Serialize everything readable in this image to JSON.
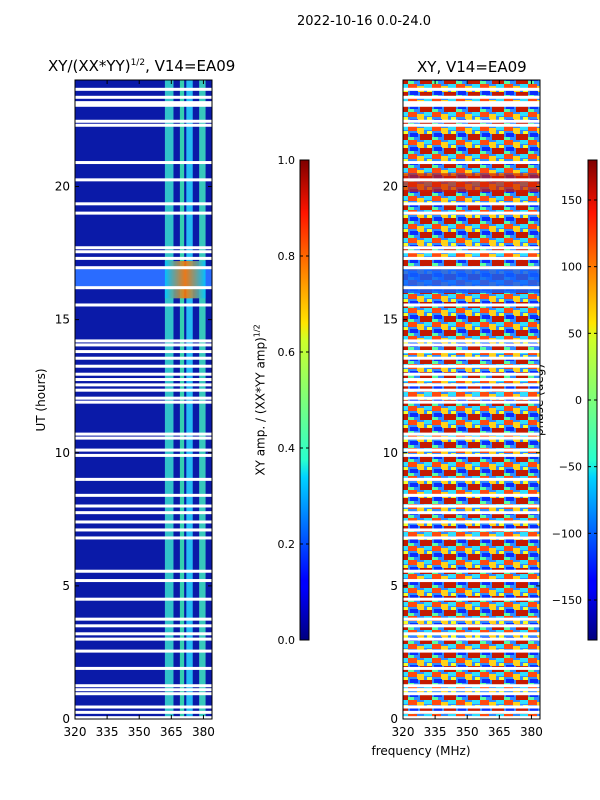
{
  "page_title": "2022-10-16 0.0-24.0",
  "xlabel": "frequency (MHz)",
  "chart_data": [
    {
      "type": "heatmap",
      "title_text": "XY/(XX*YY)",
      "title_exponent": "1/2",
      "title_suffix": ", V14=EA09",
      "ylabel": "UT (hours)",
      "xlim": [
        320,
        384
      ],
      "ylim": [
        0,
        24
      ],
      "xticks": [
        "320",
        "335",
        "350",
        "365",
        "380"
      ],
      "xtick_values": [
        320,
        335,
        350,
        365,
        380
      ],
      "yticks": [
        "0",
        "5",
        "10",
        "15",
        "20"
      ],
      "ytick_values": [
        0,
        5,
        10,
        15,
        20
      ],
      "colormap": "jet",
      "colorbar": {
        "label_text": "XY amp. / (XX*YY amp)",
        "label_exponent": "1/2",
        "range": [
          0.0,
          1.0
        ],
        "ticks": [
          "0.0",
          "0.2",
          "0.4",
          "0.6",
          "0.8",
          "1.0"
        ],
        "tick_values": [
          0.0,
          0.2,
          0.4,
          0.6,
          0.8,
          1.0
        ]
      },
      "flagged_hours": [
        0.05,
        0.25,
        0.45,
        0.95,
        1.1,
        1.25,
        1.9,
        2.55,
        3.0,
        3.2,
        3.5,
        3.75,
        4.5,
        5.2,
        5.55,
        6.8,
        7.1,
        7.4,
        7.75,
        8.0,
        8.4,
        9.0,
        9.9,
        10.1,
        10.55,
        10.7,
        11.9,
        12.05,
        12.35,
        12.55,
        12.75,
        12.95,
        13.25,
        13.55,
        13.8,
        14.05,
        14.2,
        15.55,
        16.2,
        16.95,
        17.3,
        17.55,
        17.7,
        19.0,
        19.35,
        20.25,
        20.9,
        22.3,
        22.45,
        23.05,
        23.15,
        23.35,
        23.65
      ]
    },
    {
      "type": "heatmap",
      "title_text": "XY, V14=EA09",
      "ylabel": "",
      "xlim": [
        320,
        384
      ],
      "ylim": [
        0,
        24
      ],
      "xticks": [
        "320",
        "335",
        "350",
        "365",
        "380"
      ],
      "xtick_values": [
        320,
        335,
        350,
        365,
        380
      ],
      "yticks": [
        "0",
        "5",
        "10",
        "15",
        "20"
      ],
      "ytick_values": [
        0,
        5,
        10,
        15,
        20
      ],
      "colormap": "jet",
      "colorbar": {
        "label_text": "phase (deg)",
        "range": [
          -180,
          180
        ],
        "ticks": [
          "−150",
          "−100",
          "−50",
          "0",
          "50",
          "100",
          "150"
        ],
        "tick_values": [
          -150,
          -100,
          -50,
          0,
          50,
          100,
          150
        ]
      },
      "flagged_hours": [
        0.05,
        0.25,
        0.45,
        0.95,
        1.1,
        1.25,
        1.9,
        2.55,
        3.0,
        3.2,
        3.5,
        3.75,
        4.5,
        5.2,
        5.55,
        6.8,
        7.1,
        7.4,
        7.75,
        8.0,
        8.4,
        9.0,
        9.9,
        10.1,
        10.55,
        10.7,
        11.9,
        12.05,
        12.35,
        12.55,
        12.75,
        12.95,
        13.25,
        13.55,
        13.8,
        14.05,
        14.2,
        15.55,
        16.2,
        16.95,
        17.3,
        17.55,
        17.7,
        19.0,
        19.35,
        20.25,
        20.9,
        22.3,
        22.45,
        23.05,
        23.15,
        23.35,
        23.65
      ]
    }
  ]
}
